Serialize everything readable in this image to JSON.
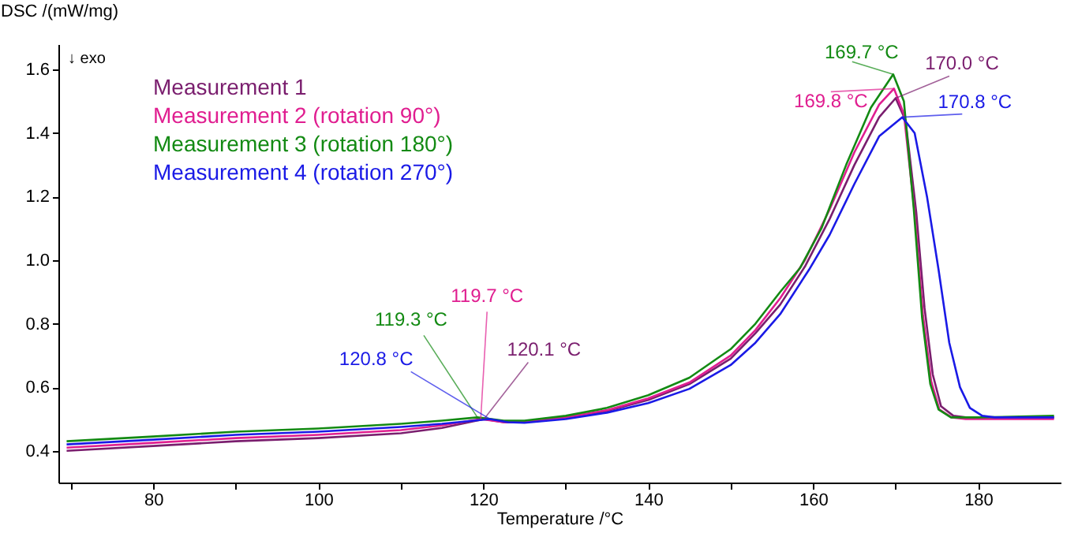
{
  "chart_data": {
    "type": "line",
    "xlabel": "Temperature /°C",
    "ylabel": "DSC /(mW/mg)",
    "xlim": [
      68.5,
      190
    ],
    "ylim": [
      0.3,
      1.68
    ],
    "xticks": [
      {
        "value": 70,
        "label": null
      },
      80,
      {
        "value": 90,
        "label": null
      },
      100,
      {
        "value": 110,
        "label": null
      },
      120,
      {
        "value": 130,
        "label": null
      },
      140,
      {
        "value": 150,
        "label": null
      },
      160,
      {
        "value": 170,
        "label": null
      },
      180
    ],
    "yticks": [
      0.4,
      0.6,
      0.8,
      {
        "value": 1.0,
        "label": "1.0"
      },
      1.2,
      1.4,
      1.6
    ],
    "legend": "top left",
    "grid": false,
    "marker": "none",
    "line_style": "solid",
    "series": [
      {
        "name": "Measurement 1",
        "color": "#7a1e6e",
        "x": [
          69.5,
          80,
          90,
          100,
          110,
          115,
          120.1,
          122.5,
          125,
          130,
          135,
          140,
          145,
          150,
          153,
          156,
          159,
          162,
          165,
          168,
          170.0,
          171.2,
          172.5,
          173.5,
          174.5,
          175.5,
          177,
          178.5,
          180,
          189.2
        ],
        "values": [
          0.4,
          0.415,
          0.43,
          0.44,
          0.455,
          0.472,
          0.5,
          0.49,
          0.49,
          0.505,
          0.525,
          0.56,
          0.61,
          0.69,
          0.77,
          0.86,
          0.98,
          1.13,
          1.3,
          1.45,
          1.51,
          1.44,
          1.15,
          0.85,
          0.64,
          0.54,
          0.51,
          0.505,
          0.505,
          0.505
        ]
      },
      {
        "name": "Measurement 2 (rotation 90°)",
        "color": "#e01e90",
        "x": [
          69.5,
          80,
          90,
          100,
          110,
          115,
          119.7,
          122.5,
          125,
          130,
          135,
          140,
          145,
          150,
          153,
          156,
          159,
          162,
          165,
          168,
          169.8,
          171,
          172.3,
          173.3,
          174.3,
          175.3,
          176.8,
          178.5,
          180,
          189.2
        ],
        "values": [
          0.41,
          0.425,
          0.44,
          0.45,
          0.465,
          0.48,
          0.5,
          0.49,
          0.49,
          0.505,
          0.528,
          0.565,
          0.615,
          0.7,
          0.78,
          0.88,
          1.0,
          1.16,
          1.34,
          1.49,
          1.54,
          1.46,
          1.15,
          0.83,
          0.62,
          0.53,
          0.505,
          0.5,
          0.5,
          0.5
        ]
      },
      {
        "name": "Measurement 3 (rotation 180°)",
        "color": "#138a13",
        "x": [
          69.5,
          80,
          90,
          100,
          110,
          115,
          119.3,
          122.5,
          125,
          130,
          135,
          140,
          145,
          150,
          153,
          156,
          158.4,
          161,
          164,
          167,
          169.7,
          171,
          172.2,
          173.2,
          174.2,
          175.2,
          176.7,
          178.5,
          180,
          189.2
        ],
        "values": [
          0.43,
          0.445,
          0.46,
          0.47,
          0.485,
          0.495,
          0.505,
          0.495,
          0.495,
          0.51,
          0.535,
          0.575,
          0.63,
          0.72,
          0.8,
          0.9,
          0.975,
          1.1,
          1.3,
          1.48,
          1.585,
          1.5,
          1.16,
          0.82,
          0.61,
          0.53,
          0.505,
          0.505,
          0.505,
          0.51
        ]
      },
      {
        "name": "Measurement 4 (rotation 270°)",
        "color": "#1a1ae6",
        "x": [
          69.5,
          80,
          90,
          100,
          110,
          115,
          120.8,
          123,
          125,
          130,
          135,
          140,
          145,
          150,
          153,
          156,
          159.5,
          162,
          165,
          168,
          170.8,
          172.3,
          173.8,
          175.2,
          176.5,
          177.8,
          179,
          180.5,
          182,
          189.2
        ],
        "values": [
          0.42,
          0.435,
          0.45,
          0.46,
          0.475,
          0.485,
          0.5,
          0.49,
          0.488,
          0.5,
          0.52,
          0.55,
          0.595,
          0.67,
          0.74,
          0.83,
          0.97,
          1.08,
          1.24,
          1.39,
          1.45,
          1.4,
          1.2,
          0.97,
          0.74,
          0.6,
          0.535,
          0.51,
          0.505,
          0.505
        ]
      }
    ],
    "annotations": [
      "↓ exo",
      {
        "text": "169.7 °C",
        "x": 169.7,
        "y": 1.585
      },
      {
        "text": "170.0 °C",
        "x": 170.0,
        "y": 1.51
      },
      {
        "text": "169.8 °C",
        "x": 169.8,
        "y": 1.54
      },
      {
        "text": "170.8 °C",
        "x": 170.8,
        "y": 1.45
      },
      {
        "text": "119.7 °C",
        "x": 119.7,
        "y": 0.5
      },
      {
        "text": "119.3 °C",
        "x": 119.3,
        "y": 0.505
      },
      {
        "text": "120.1 °C",
        "x": 120.1,
        "y": 0.5
      },
      {
        "text": "120.8 °C",
        "x": 120.8,
        "y": 0.5
      }
    ]
  }
}
